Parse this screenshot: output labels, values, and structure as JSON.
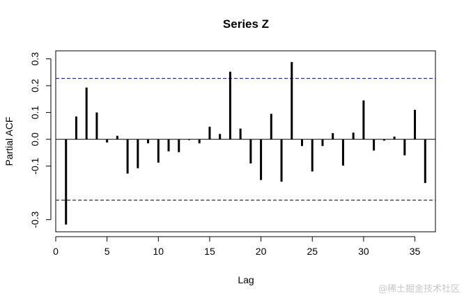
{
  "chart_data": {
    "type": "bar",
    "title": "Series  Z",
    "xlabel": "Lag",
    "ylabel": "Partial ACF",
    "x": [
      1,
      2,
      3,
      4,
      5,
      6,
      7,
      8,
      9,
      10,
      11,
      12,
      13,
      14,
      15,
      16,
      17,
      18,
      19,
      20,
      21,
      22,
      23,
      24,
      25,
      26,
      27,
      28,
      29,
      30,
      31,
      32,
      33,
      34,
      35,
      36
    ],
    "values": [
      -0.318,
      0.085,
      0.193,
      0.1,
      -0.012,
      0.013,
      -0.128,
      -0.108,
      -0.015,
      -0.087,
      -0.045,
      -0.048,
      -0.003,
      -0.015,
      0.047,
      0.02,
      0.252,
      0.04,
      -0.09,
      -0.152,
      0.095,
      -0.158,
      0.288,
      -0.025,
      -0.12,
      -0.025,
      0.023,
      -0.098,
      0.025,
      0.145,
      -0.042,
      -0.005,
      0.01,
      -0.06,
      0.11,
      -0.163
    ],
    "confidence_bound": 0.227,
    "xlim": [
      0,
      37
    ],
    "ylim": [
      -0.345,
      0.33
    ],
    "xticks": [
      0,
      5,
      10,
      15,
      20,
      25,
      30,
      35
    ],
    "yticks": [
      -0.3,
      -0.1,
      0.0,
      0.1,
      0.2,
      0.3
    ],
    "ytick_labels": [
      "-0.3",
      "-0.1",
      "0.0",
      "0.1",
      "0.2",
      "0.3"
    ],
    "colors": {
      "bars": "#000000",
      "bounds": "#00008b",
      "axis": "#000000"
    }
  },
  "watermark": "@稀土掘金技术社区"
}
